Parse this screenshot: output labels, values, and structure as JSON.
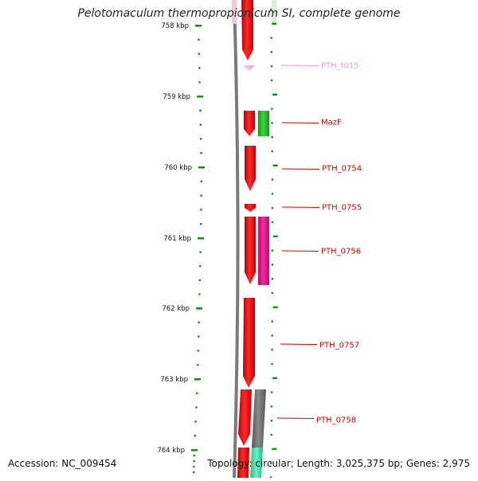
{
  "title": "Pelotomaculum thermopropionicum SI, complete genome",
  "accession": "Accession: NC_009454",
  "summary": "Topology: circular; Length: 3,025,375 bp; Genes: 2,975",
  "ticks": [
    "758 kbp",
    "759 kbp",
    "760 kbp",
    "761 kbp",
    "762 kbp",
    "763 kbp",
    "764 kbp"
  ],
  "genes": [
    {
      "label": "PTH_t015",
      "color": "#f29ad0"
    },
    {
      "label": "MazF",
      "color": "#dd0000"
    },
    {
      "label": "PTH_0754",
      "color": "#dd0000"
    },
    {
      "label": "PTH_0755",
      "color": "#dd0000"
    },
    {
      "label": "PTH_0756",
      "color": "#dd0000"
    },
    {
      "label": "PTH_0757",
      "color": "#dd0000"
    },
    {
      "label": "PTH_0758",
      "color": "#dd0000"
    }
  ],
  "colors": {
    "forward_cds": "#ee0000",
    "tick_green": "#1a8a1a",
    "backbone": "#808080",
    "mazf_partner": "#22bb22",
    "pth0756_partner": "#e0178f",
    "pth0758_partner": "#6f6f6f",
    "bottom_partner": "#40e0b0"
  }
}
